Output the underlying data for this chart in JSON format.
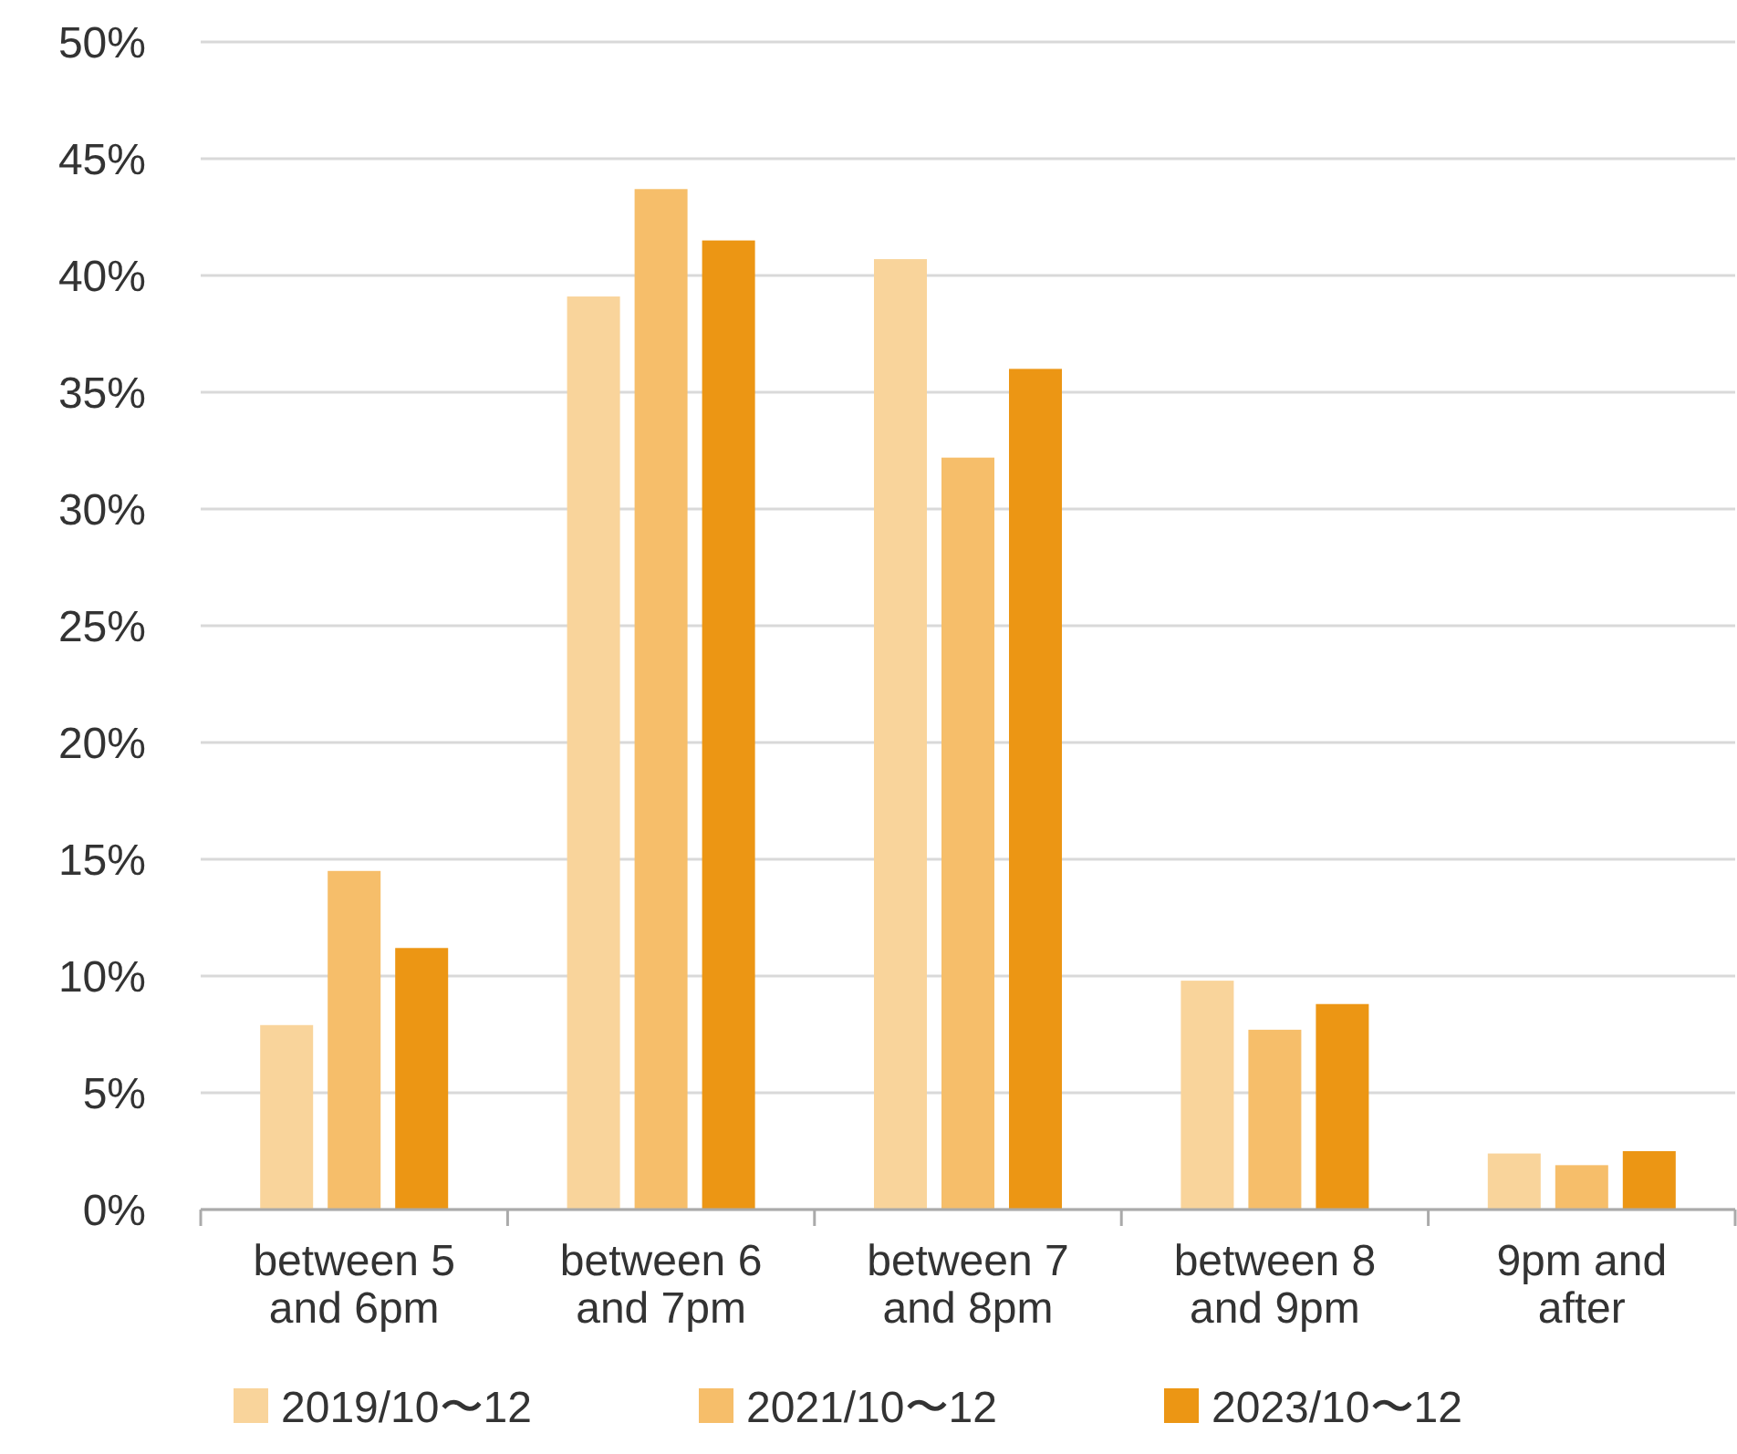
{
  "chart_data": {
    "type": "bar",
    "categories": [
      "between 5 and 6pm",
      "between 6 and 7pm",
      "between 7 and 8pm",
      "between 8 and 9pm",
      "9pm and after"
    ],
    "series": [
      {
        "name": "2019/10〜12",
        "color": "#f9d49b",
        "values": [
          7.9,
          39.1,
          40.7,
          9.8,
          2.4
        ]
      },
      {
        "name": "2021/10〜12",
        "color": "#f6be6a",
        "values": [
          14.5,
          43.7,
          32.2,
          7.7,
          1.9
        ]
      },
      {
        "name": "2023/10〜12",
        "color": "#ec9614",
        "values": [
          11.2,
          41.5,
          36.0,
          8.8,
          2.5
        ]
      }
    ],
    "ylim": [
      0,
      50
    ],
    "yticks": [
      {
        "value": 0,
        "label": "0%"
      },
      {
        "value": 5,
        "label": "5%"
      },
      {
        "value": 10,
        "label": "10%"
      },
      {
        "value": 15,
        "label": "15%"
      },
      {
        "value": 20,
        "label": "20%"
      },
      {
        "value": 25,
        "label": "25%"
      },
      {
        "value": 30,
        "label": "30%"
      },
      {
        "value": 35,
        "label": "35%"
      },
      {
        "value": 40,
        "label": "40%"
      },
      {
        "value": 45,
        "label": "45%"
      },
      {
        "value": 50,
        "label": "50%"
      }
    ],
    "grid": "y",
    "legend": "bottom"
  }
}
